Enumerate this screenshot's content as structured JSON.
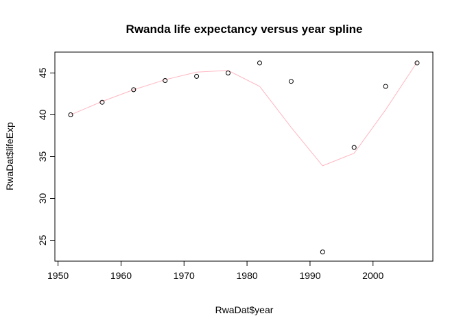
{
  "chart_data": {
    "type": "scatter",
    "title": "Rwanda life expectancy versus year spline",
    "xlabel": "RwaDat$year",
    "ylabel": "RwaDat$lifeExp",
    "xlim": [
      1949.5,
      2009.5
    ],
    "ylim": [
      22.5,
      47.5
    ],
    "x_ticks": [
      1950,
      1960,
      1970,
      1980,
      1990,
      2000
    ],
    "y_ticks": [
      25,
      30,
      35,
      40,
      45
    ],
    "grid": false,
    "colors": {
      "points": "#000000",
      "spline": "#ffb6c1",
      "axis": "#000000"
    },
    "series": [
      {
        "type": "scatter",
        "x": [
          1952,
          1957,
          1962,
          1967,
          1972,
          1977,
          1982,
          1987,
          1992,
          1997,
          2002,
          2007
        ],
        "y": [
          40.0,
          41.5,
          43.0,
          44.1,
          44.6,
          45.0,
          46.2,
          44.0,
          23.6,
          36.1,
          43.4,
          46.2
        ]
      },
      {
        "type": "line",
        "x": [
          1952,
          1957,
          1962,
          1967,
          1972,
          1977,
          1982,
          1987,
          1992,
          1997,
          2002,
          2007
        ],
        "y": [
          40.0,
          41.6,
          43.0,
          44.2,
          45.1,
          45.3,
          43.4,
          38.5,
          33.9,
          35.4,
          40.6,
          46.3
        ]
      }
    ]
  }
}
